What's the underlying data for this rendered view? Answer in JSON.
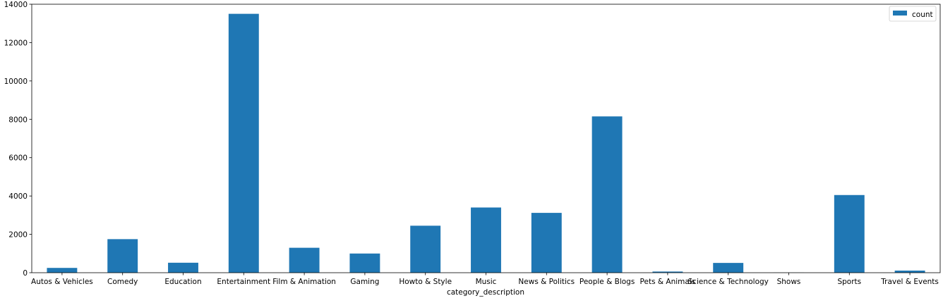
{
  "chart_data": {
    "type": "bar",
    "title": "",
    "xlabel": "category_description",
    "ylabel": "",
    "categories": [
      "Autos & Vehicles",
      "Comedy",
      "Education",
      "Entertainment",
      "Film & Animation",
      "Gaming",
      "Howto & Style",
      "Music",
      "News & Politics",
      "People & Blogs",
      "Pets & Animals",
      "Science & Technology",
      "Shows",
      "Sports",
      "Travel & Events"
    ],
    "series": [
      {
        "name": "count",
        "color": "#1f77b4",
        "values": [
          250,
          1750,
          520,
          13500,
          1300,
          1000,
          2450,
          3400,
          3120,
          8150,
          60,
          510,
          5,
          4050,
          110
        ]
      }
    ],
    "ylim": [
      0,
      14000
    ],
    "yticks": [
      0,
      2000,
      4000,
      6000,
      8000,
      10000,
      12000,
      14000
    ],
    "grid": false,
    "legend_position": "top-right"
  }
}
